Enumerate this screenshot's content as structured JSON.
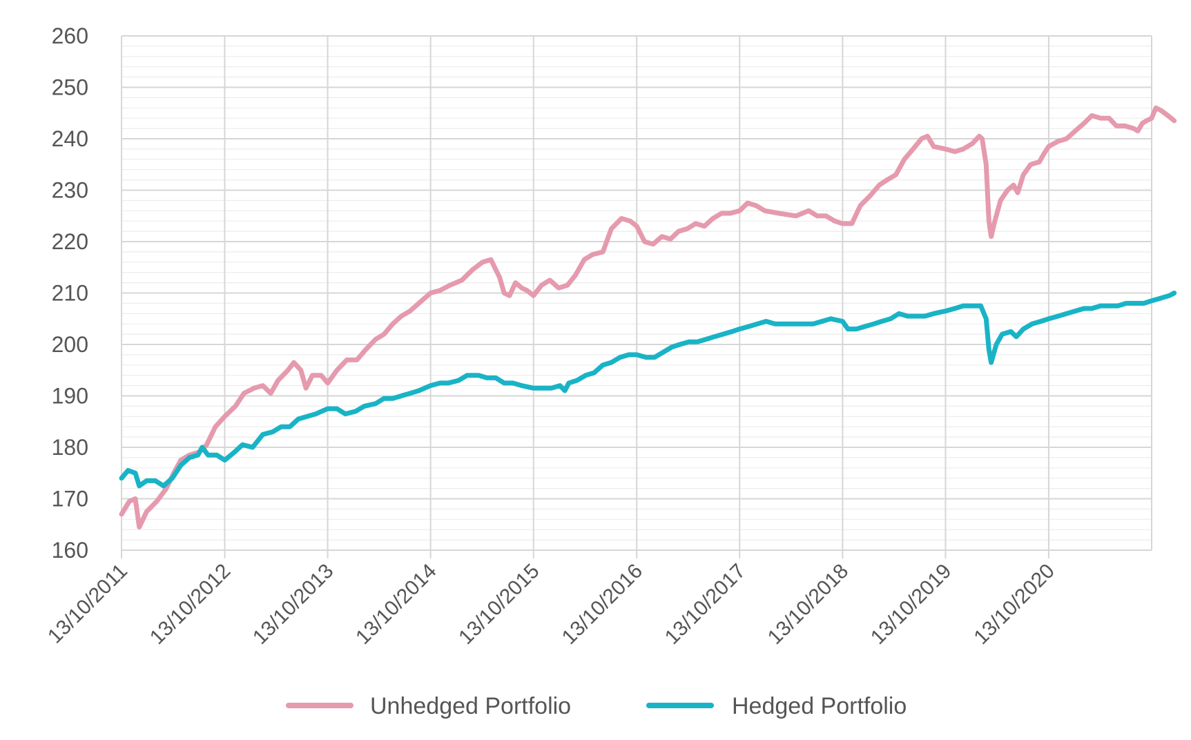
{
  "chart_data": {
    "type": "line",
    "title": "",
    "xlabel": "",
    "ylabel": "",
    "ylim": [
      160,
      260
    ],
    "y_ticks": [
      160,
      170,
      180,
      190,
      200,
      210,
      220,
      230,
      240,
      250,
      260
    ],
    "x_range": [
      "2011-10-13",
      "2021-10-13"
    ],
    "x_ticks": [
      {
        "date": "2011-10-13",
        "label": "13/10/2011"
      },
      {
        "date": "2012-10-13",
        "label": "13/10/2012"
      },
      {
        "date": "2013-10-13",
        "label": "13/10/2013"
      },
      {
        "date": "2014-10-13",
        "label": "13/10/2014"
      },
      {
        "date": "2015-10-13",
        "label": "13/10/2015"
      },
      {
        "date": "2016-10-13",
        "label": "13/10/2016"
      },
      {
        "date": "2017-10-13",
        "label": "13/10/2017"
      },
      {
        "date": "2018-10-13",
        "label": "13/10/2018"
      },
      {
        "date": "2019-10-13",
        "label": "13/10/2019"
      },
      {
        "date": "2020-10-13",
        "label": "13/10/2020"
      }
    ],
    "grid": true,
    "legend_position": "bottom",
    "series": [
      {
        "name": "Unhedged Portfolio",
        "color": "#e59aae",
        "points": [
          [
            "2011-10-13",
            167
          ],
          [
            "2011-11-10",
            169.5
          ],
          [
            "2011-12-01",
            170
          ],
          [
            "2011-12-15",
            164.5
          ],
          [
            "2012-01-10",
            167.5
          ],
          [
            "2012-02-15",
            169.5
          ],
          [
            "2012-03-20",
            172
          ],
          [
            "2012-04-15",
            175
          ],
          [
            "2012-05-10",
            177.5
          ],
          [
            "2012-06-10",
            178.5
          ],
          [
            "2012-07-10",
            179
          ],
          [
            "2012-07-25",
            179.5
          ],
          [
            "2012-08-10",
            180.5
          ],
          [
            "2012-09-10",
            184
          ],
          [
            "2012-10-13",
            186
          ],
          [
            "2012-11-20",
            188
          ],
          [
            "2012-12-20",
            190.5
          ],
          [
            "2013-01-25",
            191.5
          ],
          [
            "2013-02-25",
            192
          ],
          [
            "2013-03-25",
            190.5
          ],
          [
            "2013-04-20",
            193
          ],
          [
            "2013-05-25",
            195
          ],
          [
            "2013-06-15",
            196.5
          ],
          [
            "2013-07-10",
            195
          ],
          [
            "2013-07-28",
            191.5
          ],
          [
            "2013-08-20",
            194
          ],
          [
            "2013-09-20",
            194
          ],
          [
            "2013-10-13",
            192.5
          ],
          [
            "2013-11-15",
            195
          ],
          [
            "2013-12-20",
            197
          ],
          [
            "2014-01-25",
            197
          ],
          [
            "2014-02-25",
            199
          ],
          [
            "2014-04-01",
            201
          ],
          [
            "2014-05-01",
            202
          ],
          [
            "2014-06-01",
            204
          ],
          [
            "2014-07-01",
            205.5
          ],
          [
            "2014-08-01",
            206.5
          ],
          [
            "2014-09-01",
            208
          ],
          [
            "2014-10-13",
            210
          ],
          [
            "2014-11-15",
            210.5
          ],
          [
            "2014-12-20",
            211.5
          ],
          [
            "2015-02-01",
            212.5
          ],
          [
            "2015-03-10",
            214.5
          ],
          [
            "2015-04-15",
            216
          ],
          [
            "2015-05-15",
            216.5
          ],
          [
            "2015-06-15",
            213
          ],
          [
            "2015-07-01",
            210
          ],
          [
            "2015-07-20",
            209.5
          ],
          [
            "2015-08-10",
            212
          ],
          [
            "2015-09-01",
            211
          ],
          [
            "2015-09-20",
            210.5
          ],
          [
            "2015-10-13",
            209.5
          ],
          [
            "2015-11-10",
            211.5
          ],
          [
            "2015-12-10",
            212.5
          ],
          [
            "2016-01-10",
            211
          ],
          [
            "2016-02-10",
            211.5
          ],
          [
            "2016-03-10",
            213.5
          ],
          [
            "2016-04-10",
            216.5
          ],
          [
            "2016-05-10",
            217.5
          ],
          [
            "2016-06-15",
            218
          ],
          [
            "2016-07-15",
            222.5
          ],
          [
            "2016-08-20",
            224.5
          ],
          [
            "2016-09-20",
            224
          ],
          [
            "2016-10-13",
            223
          ],
          [
            "2016-11-10",
            220
          ],
          [
            "2016-12-10",
            219.5
          ],
          [
            "2017-01-10",
            221
          ],
          [
            "2017-02-10",
            220.5
          ],
          [
            "2017-03-10",
            222
          ],
          [
            "2017-04-10",
            222.5
          ],
          [
            "2017-05-10",
            223.5
          ],
          [
            "2017-06-10",
            223
          ],
          [
            "2017-07-10",
            224.5
          ],
          [
            "2017-08-10",
            225.5
          ],
          [
            "2017-09-10",
            225.5
          ],
          [
            "2017-10-13",
            226
          ],
          [
            "2017-11-10",
            227.5
          ],
          [
            "2017-12-10",
            227
          ],
          [
            "2018-01-10",
            226
          ],
          [
            "2018-03-01",
            225.5
          ],
          [
            "2018-05-01",
            225
          ],
          [
            "2018-06-15",
            226
          ],
          [
            "2018-07-15",
            225
          ],
          [
            "2018-08-15",
            225
          ],
          [
            "2018-09-15",
            224
          ],
          [
            "2018-10-13",
            223.5
          ],
          [
            "2018-11-15",
            223.5
          ],
          [
            "2018-12-15",
            227
          ],
          [
            "2019-01-20",
            229
          ],
          [
            "2019-02-20",
            231
          ],
          [
            "2019-03-20",
            232
          ],
          [
            "2019-04-20",
            233
          ],
          [
            "2019-05-20",
            236
          ],
          [
            "2019-06-20",
            238
          ],
          [
            "2019-07-20",
            240
          ],
          [
            "2019-08-10",
            240.5
          ],
          [
            "2019-09-01",
            238.5
          ],
          [
            "2019-10-13",
            238
          ],
          [
            "2019-11-15",
            237.5
          ],
          [
            "2019-12-15",
            238
          ],
          [
            "2020-01-15",
            239
          ],
          [
            "2020-02-10",
            240.5
          ],
          [
            "2020-02-20",
            240
          ],
          [
            "2020-03-05",
            235
          ],
          [
            "2020-03-15",
            224
          ],
          [
            "2020-03-23",
            221
          ],
          [
            "2020-04-05",
            224
          ],
          [
            "2020-04-25",
            228
          ],
          [
            "2020-05-20",
            230
          ],
          [
            "2020-06-10",
            231
          ],
          [
            "2020-06-25",
            229.5
          ],
          [
            "2020-07-15",
            233
          ],
          [
            "2020-08-10",
            235
          ],
          [
            "2020-09-10",
            235.5
          ],
          [
            "2020-09-25",
            237
          ],
          [
            "2020-10-13",
            238.5
          ],
          [
            "2020-11-15",
            239.5
          ],
          [
            "2020-12-15",
            240
          ],
          [
            "2021-01-15",
            241.5
          ],
          [
            "2021-02-15",
            243
          ],
          [
            "2021-03-15",
            244.5
          ],
          [
            "2021-04-15",
            244
          ],
          [
            "2021-05-15",
            244
          ],
          [
            "2021-06-10",
            242.5
          ],
          [
            "2021-07-10",
            242.5
          ],
          [
            "2021-08-10",
            242
          ],
          [
            "2021-08-25",
            241.5
          ],
          [
            "2021-09-10",
            243
          ],
          [
            "2021-09-25",
            243.5
          ],
          [
            "2021-10-13",
            244
          ],
          [
            "2021-10-28",
            246
          ],
          [
            "2021-11-15",
            245.5
          ],
          [
            "2021-12-10",
            244.5
          ],
          [
            "2022-01-01",
            243.5
          ]
        ]
      },
      {
        "name": "Hedged Portfolio",
        "color": "#19b3c6",
        "points": [
          [
            "2011-10-13",
            174
          ],
          [
            "2011-11-05",
            175.5
          ],
          [
            "2011-12-01",
            175
          ],
          [
            "2011-12-15",
            172.5
          ],
          [
            "2012-01-10",
            173.5
          ],
          [
            "2012-02-10",
            173.5
          ],
          [
            "2012-03-10",
            172.5
          ],
          [
            "2012-04-10",
            174
          ],
          [
            "2012-05-10",
            176.5
          ],
          [
            "2012-06-10",
            178
          ],
          [
            "2012-07-10",
            178.5
          ],
          [
            "2012-07-25",
            180
          ],
          [
            "2012-08-15",
            178.5
          ],
          [
            "2012-09-15",
            178.5
          ],
          [
            "2012-10-13",
            177.5
          ],
          [
            "2012-11-15",
            179
          ],
          [
            "2012-12-15",
            180.5
          ],
          [
            "2013-01-20",
            180
          ],
          [
            "2013-02-25",
            182.5
          ],
          [
            "2013-04-01",
            183
          ],
          [
            "2013-05-01",
            184
          ],
          [
            "2013-06-01",
            184
          ],
          [
            "2013-07-01",
            185.5
          ],
          [
            "2013-08-01",
            186
          ],
          [
            "2013-09-01",
            186.5
          ],
          [
            "2013-10-13",
            187.5
          ],
          [
            "2013-11-15",
            187.5
          ],
          [
            "2013-12-15",
            186.5
          ],
          [
            "2014-01-20",
            187
          ],
          [
            "2014-02-20",
            188
          ],
          [
            "2014-04-01",
            188.5
          ],
          [
            "2014-05-01",
            189.5
          ],
          [
            "2014-06-01",
            189.5
          ],
          [
            "2014-07-01",
            190
          ],
          [
            "2014-08-01",
            190.5
          ],
          [
            "2014-09-01",
            191
          ],
          [
            "2014-10-13",
            192
          ],
          [
            "2014-11-15",
            192.5
          ],
          [
            "2014-12-15",
            192.5
          ],
          [
            "2015-01-20",
            193
          ],
          [
            "2015-02-20",
            194
          ],
          [
            "2015-04-01",
            194
          ],
          [
            "2015-05-01",
            193.5
          ],
          [
            "2015-06-01",
            193.5
          ],
          [
            "2015-07-01",
            192.5
          ],
          [
            "2015-08-01",
            192.5
          ],
          [
            "2015-09-01",
            192
          ],
          [
            "2015-10-13",
            191.5
          ],
          [
            "2015-11-15",
            191.5
          ],
          [
            "2015-12-15",
            191.5
          ],
          [
            "2016-01-15",
            192
          ],
          [
            "2016-02-01",
            191
          ],
          [
            "2016-02-15",
            192.5
          ],
          [
            "2016-03-15",
            193
          ],
          [
            "2016-04-15",
            194
          ],
          [
            "2016-05-15",
            194.5
          ],
          [
            "2016-06-15",
            196
          ],
          [
            "2016-07-15",
            196.5
          ],
          [
            "2016-08-15",
            197.5
          ],
          [
            "2016-09-15",
            198
          ],
          [
            "2016-10-13",
            198
          ],
          [
            "2016-11-15",
            197.5
          ],
          [
            "2016-12-15",
            197.5
          ],
          [
            "2017-01-15",
            198.5
          ],
          [
            "2017-02-15",
            199.5
          ],
          [
            "2017-03-15",
            200
          ],
          [
            "2017-04-15",
            200.5
          ],
          [
            "2017-05-15",
            200.5
          ],
          [
            "2017-06-15",
            201
          ],
          [
            "2017-07-15",
            201.5
          ],
          [
            "2017-08-15",
            202
          ],
          [
            "2017-09-15",
            202.5
          ],
          [
            "2017-10-13",
            203
          ],
          [
            "2017-11-15",
            203.5
          ],
          [
            "2017-12-15",
            204
          ],
          [
            "2018-01-15",
            204.5
          ],
          [
            "2018-02-15",
            204
          ],
          [
            "2018-04-01",
            204
          ],
          [
            "2018-05-15",
            204
          ],
          [
            "2018-07-01",
            204
          ],
          [
            "2018-08-01",
            204.5
          ],
          [
            "2018-09-01",
            205
          ],
          [
            "2018-10-13",
            204.5
          ],
          [
            "2018-11-01",
            203
          ],
          [
            "2018-12-01",
            203
          ],
          [
            "2019-01-01",
            203.5
          ],
          [
            "2019-02-01",
            204
          ],
          [
            "2019-03-01",
            204.5
          ],
          [
            "2019-04-01",
            205
          ],
          [
            "2019-05-01",
            206
          ],
          [
            "2019-06-01",
            205.5
          ],
          [
            "2019-07-01",
            205.5
          ],
          [
            "2019-08-01",
            205.5
          ],
          [
            "2019-09-01",
            206
          ],
          [
            "2019-10-13",
            206.5
          ],
          [
            "2019-11-15",
            207
          ],
          [
            "2019-12-15",
            207.5
          ],
          [
            "2020-01-15",
            207.5
          ],
          [
            "2020-02-15",
            207.5
          ],
          [
            "2020-03-05",
            205
          ],
          [
            "2020-03-15",
            199
          ],
          [
            "2020-03-23",
            196.5
          ],
          [
            "2020-04-10",
            200
          ],
          [
            "2020-05-01",
            202
          ],
          [
            "2020-06-01",
            202.5
          ],
          [
            "2020-06-20",
            201.5
          ],
          [
            "2020-07-15",
            203
          ],
          [
            "2020-08-15",
            204
          ],
          [
            "2020-09-15",
            204.5
          ],
          [
            "2020-10-13",
            205
          ],
          [
            "2020-11-15",
            205.5
          ],
          [
            "2020-12-15",
            206
          ],
          [
            "2021-01-15",
            206.5
          ],
          [
            "2021-02-15",
            207
          ],
          [
            "2021-03-15",
            207
          ],
          [
            "2021-04-15",
            207.5
          ],
          [
            "2021-05-15",
            207.5
          ],
          [
            "2021-06-15",
            207.5
          ],
          [
            "2021-07-15",
            208
          ],
          [
            "2021-08-15",
            208
          ],
          [
            "2021-09-15",
            208
          ],
          [
            "2021-10-13",
            208.5
          ],
          [
            "2021-11-15",
            209
          ],
          [
            "2021-12-15",
            209.5
          ],
          [
            "2022-01-01",
            210
          ]
        ]
      }
    ]
  }
}
